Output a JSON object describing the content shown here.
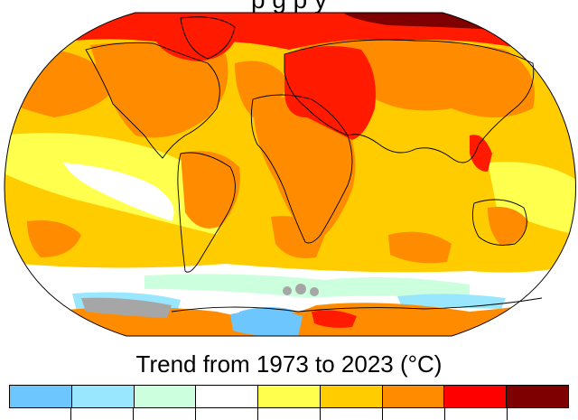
{
  "top_title_fragment": "p                         g                        p          y",
  "legend": {
    "title": "Trend from 1973 to 2023 (°C)",
    "colors": [
      "#6ec6ff",
      "#99e7ff",
      "#ccffdd",
      "#ffffff",
      "#ffff4d",
      "#ffcc00",
      "#ff8c00",
      "#ff0000",
      "#7f0000"
    ]
  },
  "map": {
    "projection": "robinson",
    "land_outline_color": "#000000",
    "no_data_color": "#a6a6a6",
    "region_colors": {
      "dark_red": "#7f0000",
      "red": "#ff1a00",
      "orange_red": "#ff6a00",
      "orange": "#ff8c00",
      "amber": "#ffcc00",
      "yellow": "#ffff4d",
      "white": "#ffffff",
      "mint": "#ccffdd",
      "light_blue": "#99e7ff",
      "blue": "#6ec6ff"
    }
  }
}
